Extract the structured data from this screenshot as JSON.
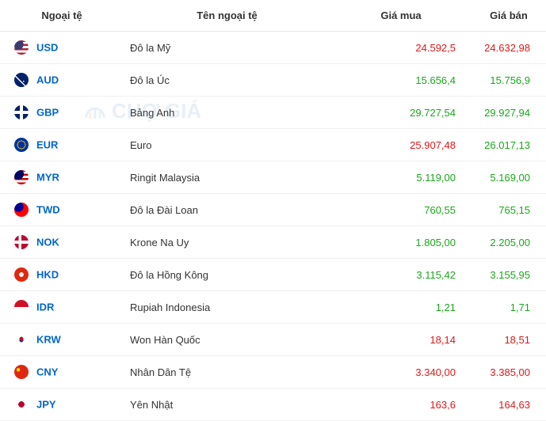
{
  "headers": {
    "code": "Ngoại tệ",
    "name": "Tên ngoại tệ",
    "buy": "Giá mua",
    "sell": "Giá bán"
  },
  "watermark_text": "CHỢ GIÁ",
  "colors": {
    "up": "#1aa81a",
    "down": "#e31818",
    "link": "#0066cc",
    "text": "#333333",
    "border": "#f0f0f0"
  },
  "rows": [
    {
      "code": "USD",
      "name": "Đô la Mỹ",
      "buy": "24.592,5",
      "buy_cls": "c-red",
      "sell": "24.632,98",
      "sell_cls": "c-red",
      "flag_bg": "linear-gradient(0deg,#b22234 0 15%,#fff 15% 30%,#b22234 30% 45%,#fff 45% 60%,#b22234 60% 75%,#fff 75% 90%,#b22234 90% 100%)",
      "flag_overlay": "radial-gradient(circle at 30% 30%, #3c3b6e 0 35%, transparent 35%)"
    },
    {
      "code": "AUD",
      "name": "Đô la Úc",
      "buy": "15.656,4",
      "buy_cls": "c-green",
      "sell": "15.756,9",
      "sell_cls": "c-green",
      "flag_bg": "#012169",
      "flag_overlay": "radial-gradient(circle at 65% 60%, #fff 0 5%, transparent 6%), linear-gradient(45deg, transparent 40%, #fff 40% 45%, transparent 45%)"
    },
    {
      "code": "GBP",
      "name": "Bảng Anh",
      "buy": "29.727,54",
      "buy_cls": "c-green",
      "sell": "29.927,94",
      "sell_cls": "c-green",
      "flag_bg": "#012169",
      "flag_overlay": "linear-gradient(0deg, transparent 40%, #fff 40% 60%, transparent 60%), linear-gradient(90deg, transparent 40%, #fff 40% 60%, transparent 60%), linear-gradient(0deg, transparent 44%, #c8102e 44% 56%, transparent 56%), linear-gradient(90deg, transparent 44%, #c8102e 44% 56%, transparent 56%)"
    },
    {
      "code": "EUR",
      "name": "Euro",
      "buy": "25.907,48",
      "buy_cls": "c-red",
      "sell": "26.017,13",
      "sell_cls": "c-green",
      "flag_bg": "#003399",
      "flag_overlay": "radial-gradient(circle at 50% 50%, transparent 35%, #ffcc00 35% 42%, transparent 42%)"
    },
    {
      "code": "MYR",
      "name": "Ringit Malaysia",
      "buy": "5.119,00",
      "buy_cls": "c-green",
      "sell": "5.169,00",
      "sell_cls": "c-green",
      "flag_bg": "linear-gradient(0deg,#cc0001 0 15%,#fff 15% 30%,#cc0001 30% 45%,#fff 45% 60%,#cc0001 60% 75%,#fff 75% 90%,#cc0001 90% 100%)",
      "flag_overlay": "radial-gradient(circle at 28% 28%, #010066 0 38%, transparent 38%)"
    },
    {
      "code": "TWD",
      "name": "Đô la Đài Loan",
      "buy": "760,55",
      "buy_cls": "c-green",
      "sell": "765,15",
      "sell_cls": "c-green",
      "flag_bg": "#fe0000",
      "flag_overlay": "radial-gradient(circle at 30% 30%, #000095 0 35%, transparent 35%), radial-gradient(circle at 30% 30%, #fff 0 12%, transparent 13%)"
    },
    {
      "code": "NOK",
      "name": "Krone Na Uy",
      "buy": "1.805,00",
      "buy_cls": "c-green",
      "sell": "2.205,00",
      "sell_cls": "c-green",
      "flag_bg": "#ba0c2f",
      "flag_overlay": "linear-gradient(0deg, transparent 38%, #fff 38% 62%, transparent 62%), linear-gradient(90deg, transparent 30%, #fff 30% 50%, transparent 50%), linear-gradient(0deg, transparent 44%, #00205b 44% 56%, transparent 56%), linear-gradient(90deg, transparent 36%, #00205b 36% 44%, transparent 44%)"
    },
    {
      "code": "HKD",
      "name": "Đô la Hồng Kông",
      "buy": "3.115,42",
      "buy_cls": "c-green",
      "sell": "3.155,95",
      "sell_cls": "c-green",
      "flag_bg": "#de2910",
      "flag_overlay": "radial-gradient(circle at 50% 50%, #fff 0 22%, transparent 23%)"
    },
    {
      "code": "IDR",
      "name": "Rupiah Indonesia",
      "buy": "1,21",
      "buy_cls": "c-green",
      "sell": "1,71",
      "sell_cls": "c-green",
      "flag_bg": "linear-gradient(0deg, #fff 0 50%, #ce1126 50% 100%)",
      "flag_overlay": "none"
    },
    {
      "code": "KRW",
      "name": "Won Hàn Quốc",
      "buy": "18,14",
      "buy_cls": "c-red",
      "sell": "18,51",
      "sell_cls": "c-red",
      "flag_bg": "#ffffff",
      "flag_overlay": "radial-gradient(circle at 50% 45%, #c60c30 0 18%, transparent 19%), radial-gradient(circle at 50% 55%, #003478 0 18%, transparent 19%)"
    },
    {
      "code": "CNY",
      "name": "Nhân Dân Tệ",
      "buy": "3.340,00",
      "buy_cls": "c-red",
      "sell": "3.385,00",
      "sell_cls": "c-red",
      "flag_bg": "#de2910",
      "flag_overlay": "radial-gradient(circle at 28% 35%, #ffde00 0 12%, transparent 13%)"
    },
    {
      "code": "JPY",
      "name": "Yên Nhật",
      "buy": "163,6",
      "buy_cls": "c-red",
      "sell": "164,63",
      "sell_cls": "c-red",
      "flag_bg": "#ffffff",
      "flag_overlay": "radial-gradient(circle at 50% 50%, #bc002d 0 30%, transparent 31%)"
    }
  ]
}
